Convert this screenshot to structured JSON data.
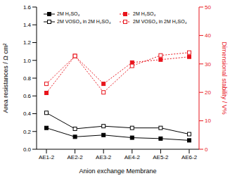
{
  "chart_data": {
    "type": "line",
    "x_label": "Anion exchange Membrane",
    "y_label": "Area resistances / Ω cm²",
    "y2_label": "Dimensional stability / V%",
    "categories": [
      "AE1-2",
      "AE2-2",
      "AE3-2",
      "AE4-2",
      "AE5-2",
      "AE6-2"
    ],
    "ylim": [
      0,
      1.6
    ],
    "yticks": [
      {
        "value": 0,
        "label": "0.0"
      },
      0.2,
      0.4,
      0.6,
      0.8,
      {
        "value": 1,
        "label": "1.0"
      },
      1.2,
      1.4,
      1.6
    ],
    "y2lim": [
      0,
      50
    ],
    "y2ticks": [
      0,
      10,
      20,
      30,
      40,
      50
    ],
    "grid": false,
    "series": [
      {
        "name": "2M H₂SO₄",
        "color": "#000000",
        "marker": "square",
        "line_style": "solid",
        "values": [
          0.24,
          0.14,
          0.16,
          0.13,
          0.12,
          0.1
        ]
      },
      {
        "name": "2M VOSO₄ in 2M H₂SO₄",
        "color": "#000000",
        "marker": "square-open",
        "line_style": "solid",
        "values": [
          0.41,
          0.23,
          0.26,
          0.24,
          0.24,
          0.17
        ]
      },
      {
        "name": "2M H₂SO₄",
        "color": "#e8141c",
        "marker": "square",
        "line_style": "dotted",
        "axis": "y2",
        "values": [
          19.8,
          32.8,
          23,
          30.5,
          31.5,
          32.5
        ]
      },
      {
        "name": "2M VOSO₄ in 2M H₂SO₄",
        "color": "#e8141c",
        "marker": "square-open",
        "line_style": "dotted",
        "axis": "y2",
        "values": [
          23,
          32.8,
          20,
          29.3,
          33,
          34
        ]
      }
    ]
  }
}
